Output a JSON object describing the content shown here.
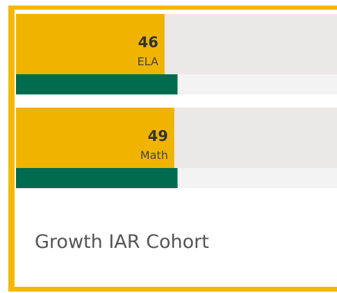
{
  "chart_data": {
    "type": "bar",
    "orientation": "horizontal",
    "title": "Growth IAR Cohort",
    "categories": [
      "ELA",
      "Math"
    ],
    "series": [
      {
        "color": "#f0b400",
        "values": [
          46,
          49
        ]
      },
      {
        "color": "#006b4f",
        "values": [
          50,
          50
        ]
      }
    ],
    "xlim": [
      0,
      100
    ]
  }
}
